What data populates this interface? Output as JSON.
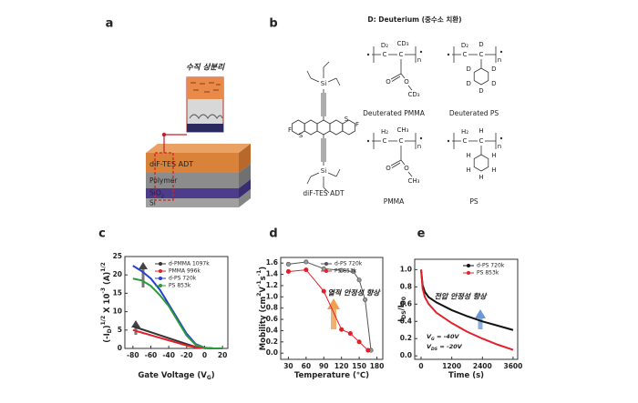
{
  "panel_a": {
    "label": "a",
    "callout": "수직 상분리",
    "layers": [
      [
        "diF-TES ADT"
      ],
      [
        "Polymer"
      ],
      [
        "SiO",
        {
          "sub": "2"
        }
      ],
      [
        "Si"
      ]
    ]
  },
  "panel_b": {
    "label": "b",
    "header": "D: Deuterium (중수소 치환)",
    "molecules": [
      {
        "name": "diF-TES ADT",
        "atoms": [
          "Si",
          "Si",
          "F",
          "F",
          "S",
          "S"
        ]
      },
      {
        "name": "Deuterated PMMA",
        "atoms": [
          "D₂",
          "C",
          "C",
          "CD₃",
          "O",
          "O",
          "CD₃",
          "n"
        ]
      },
      {
        "name": "Deuterated PS",
        "atoms": [
          "D₂",
          "C",
          "C",
          "D",
          "n",
          "D",
          "D",
          "D",
          "D",
          "D"
        ]
      },
      {
        "name": "PMMA",
        "atoms": [
          "H₂",
          "C",
          "C",
          "CH₃",
          "O",
          "O",
          "CH₃",
          "n"
        ]
      },
      {
        "name": "PS",
        "atoms": [
          "H₂",
          "C",
          "C",
          "H",
          "n",
          "H",
          "H",
          "H",
          "H",
          "H"
        ]
      }
    ]
  },
  "chart_data": [
    {
      "label": "c",
      "type": "line",
      "xlabel": [
        "Gate Voltage (V",
        {
          "sub": "G"
        },
        ")"
      ],
      "ylabel": [
        "(-I",
        {
          "sub": "D"
        },
        ")",
        {
          "sup": "1/2"
        },
        " X 10",
        {
          "sup": "-3"
        },
        " (A)",
        {
          "sup": "1/2"
        }
      ],
      "x": [
        -80,
        -70,
        -60,
        -50,
        -40,
        -30,
        -20,
        -10,
        0,
        10,
        20
      ],
      "xlim": [
        -89,
        26
      ],
      "xticks": [
        -80,
        -60,
        -40,
        -20,
        0,
        20
      ],
      "ylim": [
        0,
        25
      ],
      "yticks": [
        0,
        5,
        10,
        15,
        20,
        25
      ],
      "series": [
        {
          "name": "d-PMMA 1097k",
          "color": "#333333",
          "values": [
            6,
            5.2,
            4.4,
            3.6,
            2.8,
            2.0,
            1.2,
            0.4,
            0.1,
            0,
            0
          ]
        },
        {
          "name": "PMMA 996k",
          "color": "#e3202a",
          "values": [
            5,
            4.3,
            3.6,
            2.9,
            2.2,
            1.5,
            0.8,
            0.3,
            0.1,
            0,
            0
          ]
        },
        {
          "name": "d-PS 720k",
          "color": "#2340d0",
          "values": [
            22.5,
            21,
            19,
            16,
            12,
            8,
            4,
            1.2,
            0.2,
            0,
            0
          ]
        },
        {
          "name": "PS 853k",
          "color": "#2a9a3a",
          "values": [
            19,
            18.5,
            17,
            14.5,
            11.5,
            7.5,
            3.5,
            1,
            0.2,
            0,
            0
          ]
        }
      ]
    },
    {
      "label": "d",
      "type": "line",
      "markers": true,
      "xlabel": [
        "Temperature (℃)"
      ],
      "ylabel": [
        "Mobility (cm",
        {
          "sup": "2"
        },
        "V",
        {
          "sup": "-1"
        },
        "s",
        {
          "sup": "-1"
        },
        ")"
      ],
      "xlim": [
        17,
        190
      ],
      "xticks": [
        30,
        60,
        90,
        120,
        150,
        180
      ],
      "ylim": [
        -0.11,
        1.7
      ],
      "yticks": [
        {
          "value": 0,
          "label": "0.0"
        },
        0.2,
        0.4,
        0.6,
        0.8,
        {
          "value": 1,
          "label": "1.0"
        },
        1.2,
        1.4,
        1.6
      ],
      "series": [
        {
          "name": "d-PS 720k",
          "color": "#555555",
          "x": [
            30,
            60,
            90,
            120,
            140,
            150,
            160,
            170
          ],
          "values": [
            1.58,
            1.62,
            1.5,
            1.47,
            1.45,
            1.3,
            0.95,
            0.05
          ]
        },
        {
          "name": "PS 853k",
          "color": "#e3202a",
          "x": [
            30,
            60,
            90,
            120,
            135,
            150,
            165
          ],
          "values": [
            1.45,
            1.48,
            1.1,
            0.42,
            0.35,
            0.2,
            0.05
          ]
        }
      ],
      "annotations": [
        {
          "text": "열적 안정성 향상",
          "color": "#e3202a"
        }
      ]
    },
    {
      "label": "e",
      "type": "line",
      "xlabel": [
        "Time (s)"
      ],
      "ylabel": [
        "I",
        {
          "sub": "DS"
        },
        "/I",
        {
          "sub": "D0"
        }
      ],
      "x": [
        0,
        60,
        150,
        300,
        600,
        1200,
        1800,
        2400,
        3000,
        3600
      ],
      "xlim": [
        -250,
        3780
      ],
      "xticks": [
        0,
        1200,
        2400,
        3600
      ],
      "ylim": [
        -0.04,
        1.12
      ],
      "yticks": [
        {
          "value": 0,
          "label": "0.0"
        },
        0.2,
        0.4,
        0.6,
        0.8,
        {
          "value": 1,
          "label": "1.0"
        }
      ],
      "series": [
        {
          "name": "d-PS 720k",
          "color": "#111111",
          "values": [
            1.0,
            0.82,
            0.74,
            0.68,
            0.62,
            0.53,
            0.46,
            0.4,
            0.35,
            0.3
          ]
        },
        {
          "name": "PS 853k",
          "color": "#e3202a",
          "values": [
            1.0,
            0.78,
            0.68,
            0.6,
            0.5,
            0.38,
            0.28,
            0.2,
            0.13,
            0.07
          ]
        }
      ],
      "annotations": [
        {
          "text": "전압 안정성 향상",
          "color": "#1f3fbf"
        },
        {
          "text": [
            "V",
            {
              "sub": "G"
            },
            " = -40V"
          ]
        },
        {
          "text": [
            "V",
            {
              "sub": "DS"
            },
            " = -20V"
          ]
        }
      ]
    }
  ]
}
